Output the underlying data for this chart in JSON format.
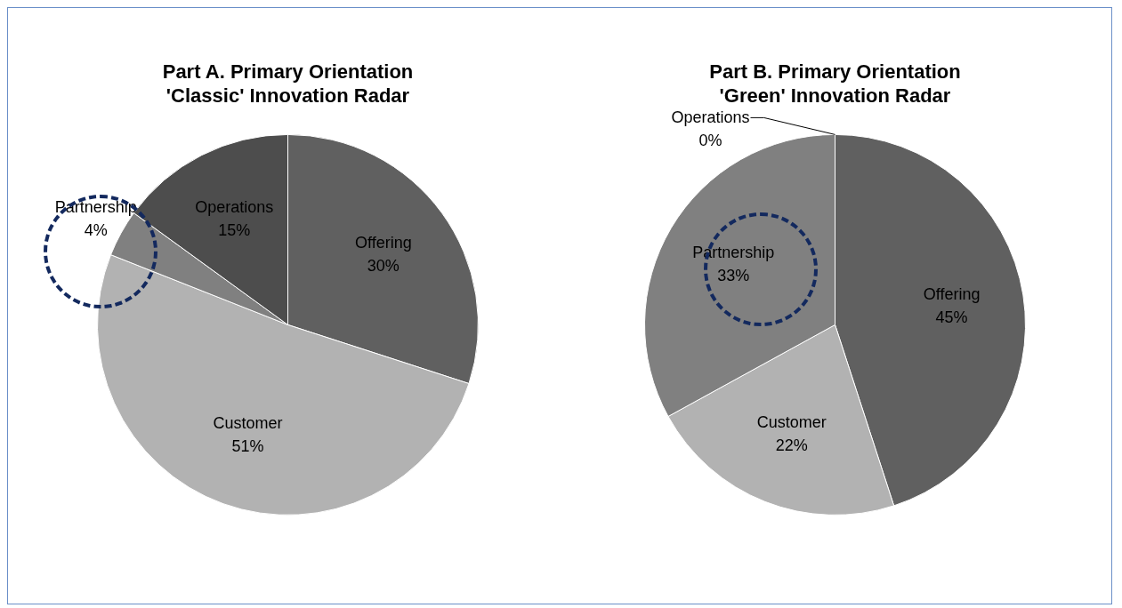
{
  "chart_data": [
    {
      "type": "pie",
      "title": "Part A. Primary Orientation\n'Classic' Innovation Radar",
      "categories": [
        "Offering",
        "Customer",
        "Partnership",
        "Operations"
      ],
      "values": [
        30,
        51,
        4,
        15
      ],
      "value_labels": [
        "30%",
        "51%",
        "4%",
        "15%"
      ],
      "colors": [
        "#606060",
        "#b2b2b2",
        "#808080",
        "#4d4d4d"
      ],
      "legend": false
    },
    {
      "type": "pie",
      "title": "Part B. Primary Orientation\n'Green' Innovation Radar",
      "categories": [
        "Offering",
        "Customer",
        "Partnership",
        "Operations"
      ],
      "values": [
        45,
        22,
        33,
        0
      ],
      "value_labels": [
        "45%",
        "22%",
        "33%",
        "0%"
      ],
      "colors": [
        "#606060",
        "#b2b2b2",
        "#808080",
        "#4d4d4d"
      ],
      "legend": false
    }
  ]
}
